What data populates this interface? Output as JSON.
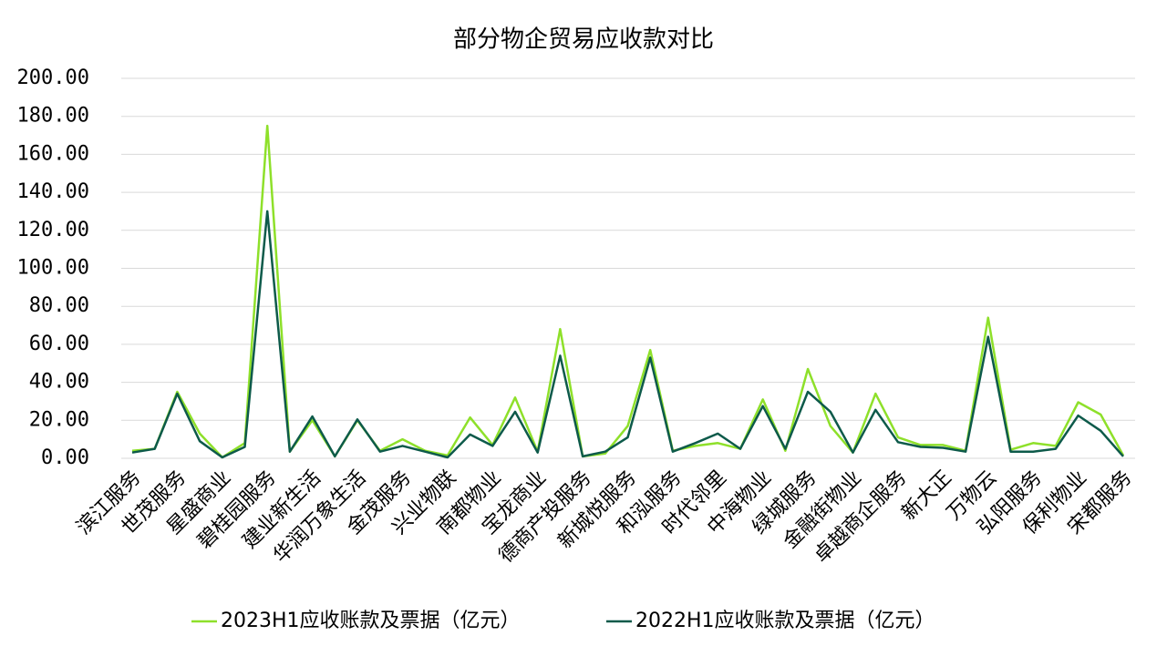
{
  "chart_data": {
    "type": "line",
    "title": "部分物企贸易应收款对比",
    "categories": [
      "滨江服务",
      null,
      "世茂服务",
      null,
      "星盛商业",
      null,
      "碧桂园服务",
      null,
      "建业新生活",
      null,
      "华润万象生活",
      null,
      "金茂服务",
      null,
      "兴业物联",
      null,
      "南都物业",
      null,
      "宝龙商业",
      null,
      "德商产投服务",
      null,
      "新城悦服务",
      null,
      "和泓服务",
      null,
      "时代邻里",
      null,
      "中海物业",
      null,
      "绿城服务",
      null,
      "金融街物业",
      null,
      "卓越商企服务",
      null,
      "新大正",
      null,
      "万物云",
      null,
      "弘阳服务",
      null,
      "保利物业",
      null,
      "宋都服务"
    ],
    "series": [
      {
        "name": "2023H1应收账款及票据（亿元）",
        "color": "#8ee02a",
        "values": [
          4,
          5,
          35,
          13,
          0.5,
          8,
          175,
          3.5,
          20,
          1,
          20,
          4,
          10,
          4,
          1.5,
          21.5,
          7,
          32,
          3.5,
          68,
          1,
          2.5,
          17,
          57,
          4,
          6.5,
          8,
          5,
          31,
          4,
          47,
          17,
          3,
          34,
          11,
          7,
          7,
          4,
          74,
          4.5,
          8,
          6.5,
          29.5,
          23,
          1.5
        ]
      },
      {
        "name": "2022H1应收账款及票据（亿元）",
        "color": "#0d5a4a",
        "values": [
          3,
          5,
          34,
          9,
          0.5,
          6,
          130,
          3.5,
          22,
          1,
          20.5,
          3.5,
          6.5,
          3.5,
          0.5,
          12.5,
          6.5,
          24.5,
          3,
          54,
          1,
          3.5,
          11,
          53,
          3.5,
          8,
          13,
          5,
          27.5,
          5,
          35,
          24.5,
          3,
          25.5,
          8.5,
          6,
          5.5,
          3.5,
          64,
          3.5,
          3.5,
          5,
          22.5,
          14.5,
          1
        ]
      }
    ],
    "ylim": [
      0,
      200
    ],
    "yticks": [
      {
        "value": 0,
        "label": "0.00"
      },
      {
        "value": 20,
        "label": "20.00"
      },
      {
        "value": 40,
        "label": "40.00"
      },
      {
        "value": 60,
        "label": "60.00"
      },
      {
        "value": 80,
        "label": "80.00"
      },
      {
        "value": 100,
        "label": "100.00"
      },
      {
        "value": 120,
        "label": "120.00"
      },
      {
        "value": 140,
        "label": "140.00"
      },
      {
        "value": 160,
        "label": "160.00"
      },
      {
        "value": 180,
        "label": "180.00"
      },
      {
        "value": 200,
        "label": "200.00"
      }
    ],
    "grid": true,
    "legend": "bottom"
  }
}
